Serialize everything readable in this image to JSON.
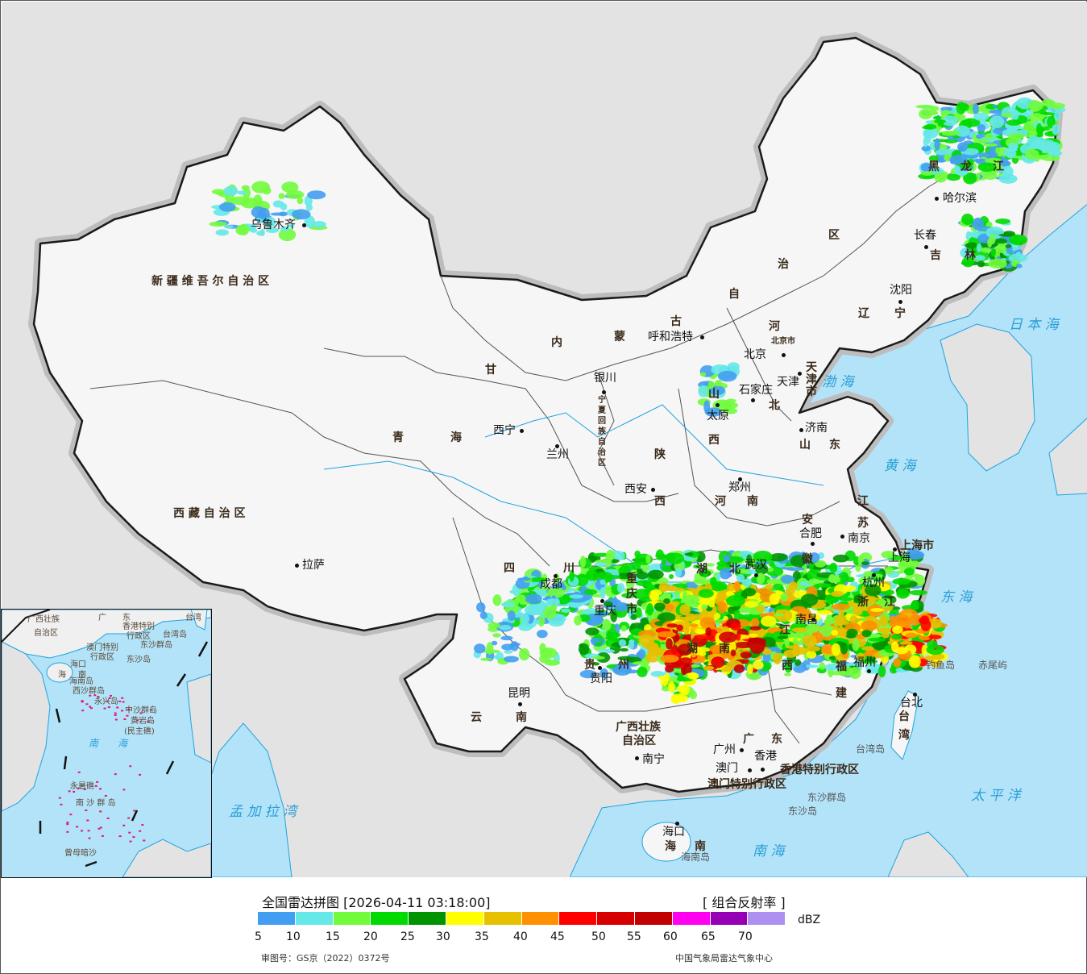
{
  "legend": {
    "title": "全国雷达拼图 [2026-04-11 03:18:00]",
    "product": "[ 组合反射率 ]",
    "unit": "dBZ",
    "colors": [
      "#429ef0",
      "#66e8e8",
      "#72fb3d",
      "#00da00",
      "#009500",
      "#ffff00",
      "#e7c000",
      "#ff9000",
      "#ff0000",
      "#d70000",
      "#c10000",
      "#ff00f0",
      "#9600b4",
      "#ad90f0"
    ],
    "ticks": [
      "5",
      "10",
      "15",
      "20",
      "25",
      "30",
      "35",
      "40",
      "45",
      "50",
      "55",
      "60",
      "65",
      "70"
    ],
    "approval": "审图号：GS京（2022）0372号",
    "source": "中国气象局雷达气象中心"
  },
  "map": {
    "colors": {
      "ocean": "#b3e3f8",
      "land_outside": "#e3e3e3",
      "china_land": "#f6f6f6",
      "border": "#1a1a1a",
      "island_marker": "#e0197d"
    },
    "provinces": [
      "新 疆 维 吾 尔 自 治 区",
      "西 藏 自 治 区",
      "青",
      "海",
      "甘",
      "内",
      "蒙",
      "古",
      "自",
      "治",
      "区",
      "黑",
      "龙",
      "江",
      "吉",
      "林",
      "辽",
      "宁",
      "河",
      "北",
      "山",
      "西",
      "山",
      "东",
      "陕",
      "西",
      "河",
      "南",
      "江",
      "苏",
      "安",
      "徽",
      "湖",
      "北",
      "四",
      "川",
      "重",
      "庆",
      "市",
      "浙",
      "江",
      "江",
      "西",
      "湖",
      "南",
      "贵",
      "州",
      "福",
      "建",
      "云",
      "南",
      "广西壮族",
      "自治区",
      "广",
      "东",
      "台",
      "湾",
      "海",
      "南",
      "上海市",
      "香港特别行政区",
      "澳门特别行政区",
      "北京市",
      "天",
      "津",
      "市",
      "宁",
      "夏",
      "回",
      "族",
      "自",
      "治",
      "区"
    ],
    "cities": [
      "乌鲁木齐",
      "拉萨",
      "西宁",
      "兰州",
      "银川",
      "呼和浩特",
      "北京",
      "天津",
      "石家庄",
      "太原",
      "济南",
      "郑州",
      "西安",
      "合肥",
      "南京",
      "上海",
      "杭州",
      "武汉",
      "成都",
      "重庆",
      "贵阳",
      "昆明",
      "南昌",
      "福州",
      "台北",
      "南宁",
      "广州",
      "澳门",
      "香港",
      "海口",
      "哈尔滨",
      "长春",
      "沈阳"
    ],
    "islands": [
      "钓鱼岛",
      "赤尾屿",
      "台湾岛",
      "东沙群岛",
      "东沙岛",
      "海南岛"
    ],
    "seas": [
      "日 本 海",
      "渤 海",
      "黄 海",
      "东 海",
      "太 平 洋",
      "南 海",
      "孟 加 拉 湾"
    ]
  },
  "inset": {
    "labels": [
      "广西壮族",
      "自治区",
      "广",
      "东",
      "台湾",
      "香港特别",
      "行政区",
      "澳门特别",
      "行政区",
      "台湾岛",
      "东沙群岛",
      "东沙岛",
      "海口",
      "海",
      "南",
      "海南岛",
      "西沙群岛",
      "永兴岛",
      "中沙群岛",
      "黄岩岛",
      "(民主礁)",
      "永暑礁",
      "南 沙 群 岛",
      "曾母暗沙"
    ],
    "sea": "南　　海"
  }
}
